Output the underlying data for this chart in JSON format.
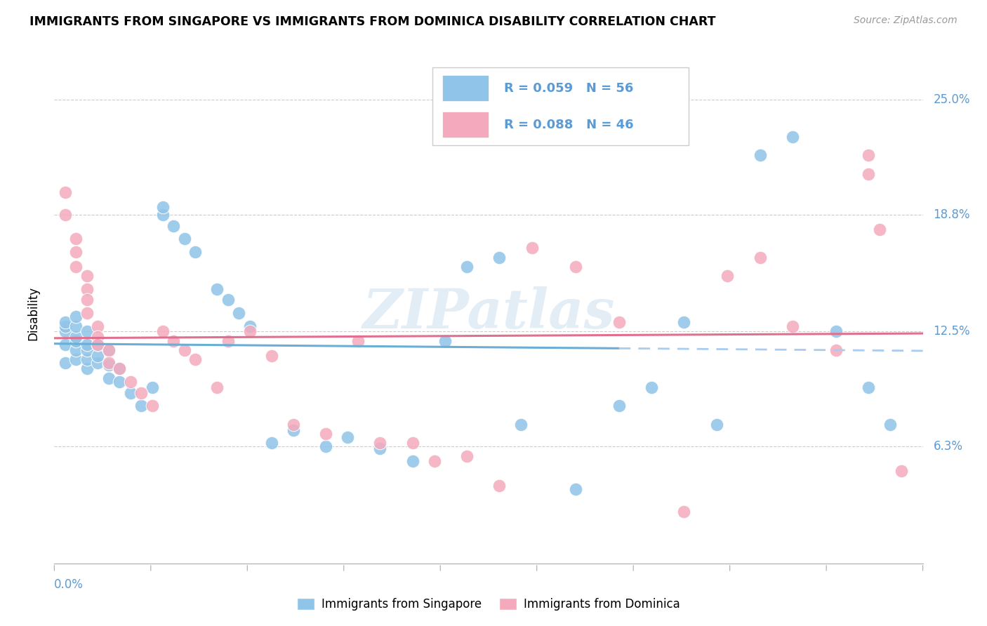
{
  "title": "IMMIGRANTS FROM SINGAPORE VS IMMIGRANTS FROM DOMINICA DISABILITY CORRELATION CHART",
  "source": "Source: ZipAtlas.com",
  "ylabel": "Disability",
  "color_singapore": "#90C4E8",
  "color_dominica": "#F4AABC",
  "color_sg_line": "#6aaed6",
  "color_dom_line": "#e07090",
  "color_dashed": "#aaccee",
  "watermark": "ZIPatlas",
  "xlim": [
    0.0,
    0.08
  ],
  "ylim": [
    0.0,
    0.27
  ],
  "ytick_values": [
    0.063,
    0.125,
    0.188,
    0.25
  ],
  "ytick_labels": [
    "6.3%",
    "12.5%",
    "18.8%",
    "25.0%"
  ],
  "sg_x": [
    0.001,
    0.001,
    0.001,
    0.001,
    0.001,
    0.002,
    0.002,
    0.002,
    0.002,
    0.002,
    0.002,
    0.003,
    0.003,
    0.003,
    0.003,
    0.003,
    0.004,
    0.004,
    0.004,
    0.005,
    0.005,
    0.005,
    0.006,
    0.006,
    0.007,
    0.008,
    0.009,
    0.01,
    0.01,
    0.011,
    0.012,
    0.013,
    0.015,
    0.016,
    0.017,
    0.018,
    0.02,
    0.022,
    0.025,
    0.027,
    0.03,
    0.033,
    0.036,
    0.038,
    0.041,
    0.043,
    0.048,
    0.052,
    0.055,
    0.058,
    0.061,
    0.065,
    0.068,
    0.072,
    0.075,
    0.077
  ],
  "sg_y": [
    0.118,
    0.125,
    0.128,
    0.13,
    0.108,
    0.11,
    0.115,
    0.12,
    0.122,
    0.128,
    0.133,
    0.105,
    0.11,
    0.115,
    0.118,
    0.125,
    0.108,
    0.112,
    0.118,
    0.1,
    0.107,
    0.115,
    0.098,
    0.105,
    0.092,
    0.085,
    0.095,
    0.188,
    0.192,
    0.182,
    0.175,
    0.168,
    0.148,
    0.142,
    0.135,
    0.128,
    0.065,
    0.072,
    0.063,
    0.068,
    0.062,
    0.055,
    0.12,
    0.16,
    0.165,
    0.075,
    0.04,
    0.085,
    0.095,
    0.13,
    0.075,
    0.22,
    0.23,
    0.125,
    0.095,
    0.075
  ],
  "dom_x": [
    0.001,
    0.001,
    0.002,
    0.002,
    0.002,
    0.003,
    0.003,
    0.003,
    0.003,
    0.004,
    0.004,
    0.004,
    0.005,
    0.005,
    0.006,
    0.007,
    0.008,
    0.009,
    0.01,
    0.011,
    0.012,
    0.013,
    0.015,
    0.016,
    0.018,
    0.02,
    0.022,
    0.025,
    0.028,
    0.03,
    0.033,
    0.035,
    0.038,
    0.041,
    0.044,
    0.048,
    0.052,
    0.058,
    0.062,
    0.065,
    0.068,
    0.072,
    0.075,
    0.075,
    0.076,
    0.078
  ],
  "dom_y": [
    0.2,
    0.188,
    0.175,
    0.168,
    0.16,
    0.155,
    0.148,
    0.142,
    0.135,
    0.128,
    0.122,
    0.118,
    0.115,
    0.108,
    0.105,
    0.098,
    0.092,
    0.085,
    0.125,
    0.12,
    0.115,
    0.11,
    0.095,
    0.12,
    0.125,
    0.112,
    0.075,
    0.07,
    0.12,
    0.065,
    0.065,
    0.055,
    0.058,
    0.042,
    0.17,
    0.16,
    0.13,
    0.028,
    0.155,
    0.165,
    0.128,
    0.115,
    0.21,
    0.22,
    0.18,
    0.05
  ]
}
